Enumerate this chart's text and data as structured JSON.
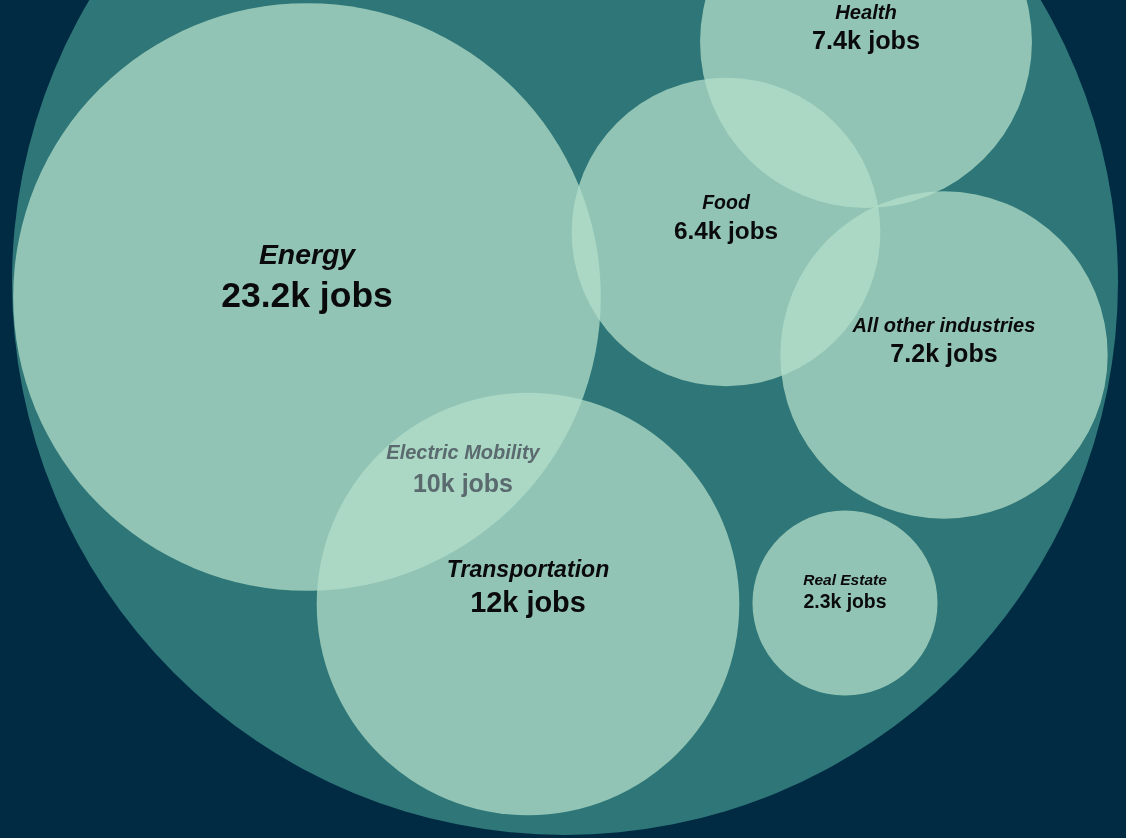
{
  "chart_data": {
    "type": "other",
    "categories": [
      "Energy",
      "Transportation",
      "Food",
      "Health",
      "All other industries",
      "Real Estate"
    ],
    "values": [
      23.2,
      12,
      6.4,
      7.4,
      7.2,
      2.3
    ],
    "value_labels": [
      "23.2k jobs",
      "12k jobs",
      "6.4k jobs",
      "7.4k jobs",
      "7.2k jobs",
      "2.3k jobs"
    ],
    "colors": [
      "#b3dfca",
      "#b3dfca",
      "#b3dfca",
      "#b3dfca",
      "#b3dfca",
      "#b3dfca"
    ],
    "annotations": [
      "Electric Mobility",
      "10k jobs"
    ]
  }
}
